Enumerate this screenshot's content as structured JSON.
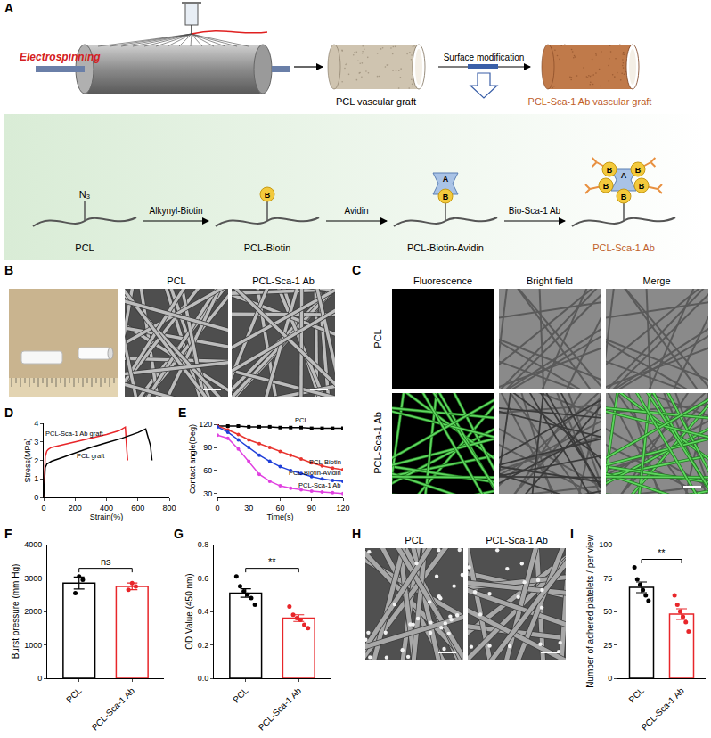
{
  "panels": [
    "A",
    "B",
    "C",
    "D",
    "E",
    "F",
    "G",
    "H",
    "I"
  ],
  "diagram_A": {
    "method": "Electrospinning",
    "graft": "PCL vascular graft",
    "modification": "Surface modification",
    "modified_graft": "PCL-Sca-1 Ab vascular graft",
    "chain_group": "N₃",
    "chain": [
      "PCL",
      "PCL-Biotin",
      "PCL-Biotin-Avidin",
      "PCL-Sca-1 Ab"
    ],
    "reagents": [
      "Alkynyl-Biotin",
      "Avidin",
      "Bio-Sca-1 Ab"
    ],
    "biotin_mark": "B",
    "avidin_mark": "A"
  },
  "images_B": {
    "labels": [
      "PCL",
      "PCL-Sca-1 Ab"
    ]
  },
  "images_C": {
    "columns": [
      "Fluorescence",
      "Bright field",
      "Merge"
    ],
    "rows": [
      "PCL",
      "PCL-Sca-1 Ab"
    ]
  },
  "images_H": {
    "labels": [
      "PCL",
      "PCL-Sca-1 Ab"
    ]
  },
  "chart_data": [
    {
      "type": "line",
      "xlabel": "Strain(%)",
      "ylabel": "Stress(MPa)",
      "xlim": [
        0,
        800
      ],
      "xticks": [
        0,
        200,
        400,
        600,
        800
      ],
      "ylim": [
        0,
        4
      ],
      "yticks": [
        0,
        1,
        2,
        3,
        4
      ],
      "series": [
        {
          "name": "PCL-Sca-1 Ab graft",
          "color": "#e8262a",
          "x": [
            0,
            5,
            10,
            20,
            30,
            50,
            100,
            200,
            300,
            400,
            480,
            520,
            530,
            535
          ],
          "values": [
            0,
            1.2,
            2.2,
            2.5,
            2.6,
            2.7,
            2.8,
            3.0,
            3.2,
            3.4,
            3.6,
            3.8,
            2.5,
            2.0
          ]
        },
        {
          "name": "PCL graft",
          "color": "#000000",
          "x": [
            0,
            5,
            10,
            20,
            50,
            100,
            200,
            300,
            400,
            500,
            600,
            650,
            680,
            690
          ],
          "values": [
            0,
            1.0,
            1.6,
            1.8,
            1.95,
            2.1,
            2.4,
            2.7,
            2.95,
            3.2,
            3.5,
            3.7,
            2.8,
            2.0
          ]
        }
      ]
    },
    {
      "type": "line",
      "xlabel": "Time(s)",
      "ylabel": "Contact angle(Deg)",
      "x": [
        0,
        10,
        20,
        30,
        40,
        50,
        60,
        70,
        80,
        90,
        100,
        110,
        120
      ],
      "xlim": [
        0,
        120
      ],
      "xticks": [
        0,
        30,
        60,
        90,
        120
      ],
      "ylim": [
        25,
        125
      ],
      "yticks": [
        30,
        60,
        90,
        120
      ],
      "series": [
        {
          "name": "PCL",
          "color": "#000000",
          "marker": "square",
          "values": [
            118,
            118,
            118,
            117,
            117,
            117,
            116,
            116,
            116,
            115,
            115,
            115,
            115
          ]
        },
        {
          "name": "PCL-Biotin",
          "color": "#e8342f",
          "marker": "circle",
          "values": [
            118,
            113,
            107,
            100,
            95,
            90,
            85,
            80,
            75,
            70,
            66,
            63,
            61
          ]
        },
        {
          "name": "PCL-Biotin-Avidin",
          "color": "#1f3fd9",
          "marker": "circle",
          "values": [
            117,
            110,
            100,
            90,
            80,
            72,
            65,
            60,
            56,
            52,
            49,
            47,
            46
          ]
        },
        {
          "name": "PCL-Sca-1 Ab",
          "color": "#e040e0",
          "marker": "circle",
          "values": [
            106,
            102,
            88,
            72,
            55,
            46,
            40,
            37,
            35,
            33,
            32,
            31,
            30
          ]
        }
      ]
    },
    {
      "type": "bar",
      "ylabel": "Burst pressure (mm Hg)",
      "categories": [
        "PCL",
        "PCL-Sca-1 Ab"
      ],
      "values": [
        2850,
        2750
      ],
      "errors": [
        180,
        100
      ],
      "points": [
        [
          2550,
          3050,
          2950
        ],
        [
          2650,
          2850,
          2750
        ]
      ],
      "colors": [
        "#000000",
        "#e8262a"
      ],
      "ylim": [
        0,
        4000
      ],
      "yticks": [
        0,
        1000,
        2000,
        3000,
        4000
      ],
      "annotation": "ns"
    },
    {
      "type": "bar",
      "ylabel": "OD Value (450 nm)",
      "categories": [
        "PCL",
        "PCL-Sca-1 Ab"
      ],
      "values": [
        0.51,
        0.36
      ],
      "errors": [
        0.025,
        0.02
      ],
      "points": [
        [
          0.61,
          0.55,
          0.52,
          0.5,
          0.48,
          0.44
        ],
        [
          0.43,
          0.38,
          0.36,
          0.35,
          0.32,
          0.3
        ]
      ],
      "colors": [
        "#000000",
        "#e8262a"
      ],
      "ylim": [
        0,
        0.8
      ],
      "yticks": [
        {
          "value": 0,
          "label": "0.0"
        },
        0.2,
        0.4,
        0.6,
        0.8
      ],
      "annotation": "**"
    },
    {
      "type": "bar",
      "ylabel": "Number of adhered platelets / per view",
      "categories": [
        "PCL",
        "PCL-Sca-1 Ab"
      ],
      "values": [
        68,
        48
      ],
      "errors": [
        4,
        4
      ],
      "points": [
        [
          83,
          74,
          70,
          66,
          62,
          58
        ],
        [
          62,
          55,
          50,
          46,
          42,
          35
        ]
      ],
      "colors": [
        "#000000",
        "#e8262a"
      ],
      "ylim": [
        0,
        100
      ],
      "yticks": [
        0,
        25,
        50,
        75,
        100
      ],
      "annotation": "**"
    }
  ]
}
